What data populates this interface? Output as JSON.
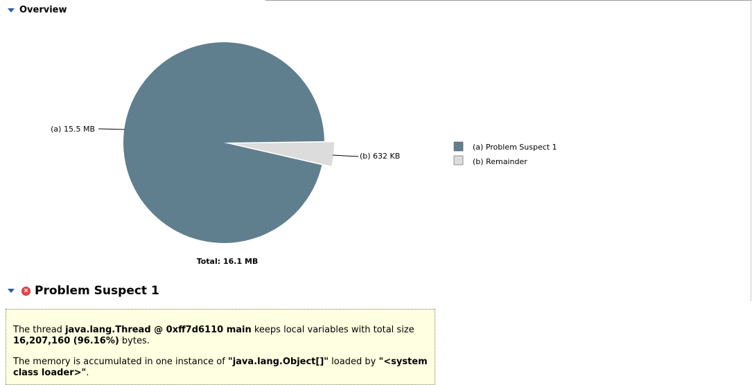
{
  "overview": {
    "title": "Overview"
  },
  "chart_data": {
    "type": "pie",
    "total_label": "Total: 16.1 MB",
    "slices": [
      {
        "label": "(a)  15.5 MB",
        "value": 15.5,
        "unit": "MB",
        "color": "#607f8e"
      },
      {
        "label": "(b)  632 KB",
        "value": 0.617,
        "unit": "MB",
        "color": "#dcdcdc"
      }
    ],
    "legend": [
      {
        "label": "(a)  Problem Suspect 1",
        "color": "#607f8e"
      },
      {
        "label": "(b)  Remainder",
        "color": "#dcdcdc"
      }
    ]
  },
  "suspect": {
    "title": "Problem Suspect 1",
    "p1_pre": "The thread ",
    "p1_thread": "java.lang.Thread @ 0xff7d6110 main",
    "p1_mid": " keeps local variables with total size ",
    "p1_size": "16,207,160 (96.16%)",
    "p1_post": " bytes.",
    "p2_pre": "The memory is accumulated in one instance of ",
    "p2_class": "\"java.lang.Object[]\"",
    "p2_mid": " loaded by ",
    "p2_loader": "\"<system class loader>\"",
    "p2_post": "."
  }
}
